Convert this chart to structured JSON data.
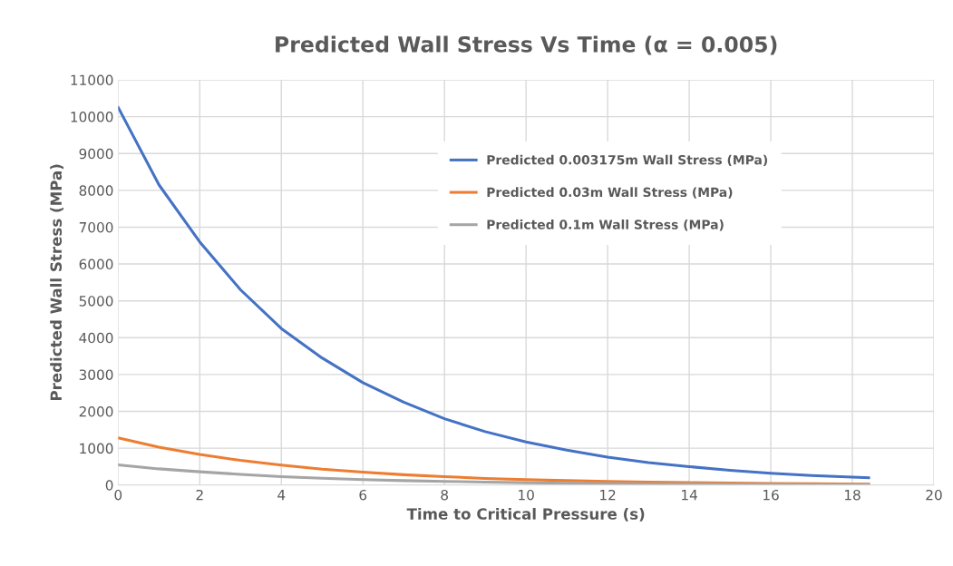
{
  "chart_data": {
    "type": "line",
    "title": "Predicted Wall Stress Vs Time (α = 0.005)",
    "xlabel": "Time to Critical Pressure (s)",
    "ylabel": "Predicted Wall Stress (MPa)",
    "x": [
      0,
      1,
      2,
      3,
      4,
      5,
      6,
      7,
      8,
      9,
      10,
      11,
      12,
      13,
      14,
      15,
      16,
      17,
      18.4
    ],
    "series": [
      {
        "name": "Predicted 0.003175m Wall Stress (MPa)",
        "color": "#4472c4",
        "values": [
          10250,
          8150,
          6600,
          5300,
          4250,
          3450,
          2780,
          2250,
          1800,
          1450,
          1170,
          950,
          760,
          610,
          500,
          400,
          320,
          260,
          200
        ]
      },
      {
        "name": "Predicted 0.03m Wall Stress (MPa)",
        "color": "#ed7d31",
        "values": [
          1280,
          1030,
          830,
          670,
          540,
          430,
          350,
          280,
          230,
          180,
          150,
          120,
          100,
          80,
          65,
          55,
          45,
          35,
          25
        ]
      },
      {
        "name": "Predicted 0.1m Wall Stress (MPa)",
        "color": "#a5a5a5",
        "values": [
          550,
          440,
          360,
          290,
          230,
          185,
          150,
          120,
          100,
          80,
          65,
          52,
          40,
          33,
          28,
          22,
          18,
          14,
          10
        ]
      }
    ],
    "xlim": [
      0,
      20
    ],
    "xticks": [
      0,
      2,
      4,
      6,
      8,
      10,
      12,
      14,
      16,
      18,
      20
    ],
    "ylim": [
      0,
      11000
    ],
    "yticks": [
      0,
      1000,
      2000,
      3000,
      4000,
      5000,
      6000,
      7000,
      8000,
      9000,
      10000,
      11000
    ],
    "grid": true,
    "legend": "right",
    "marker": "none",
    "line_style": "solid"
  }
}
